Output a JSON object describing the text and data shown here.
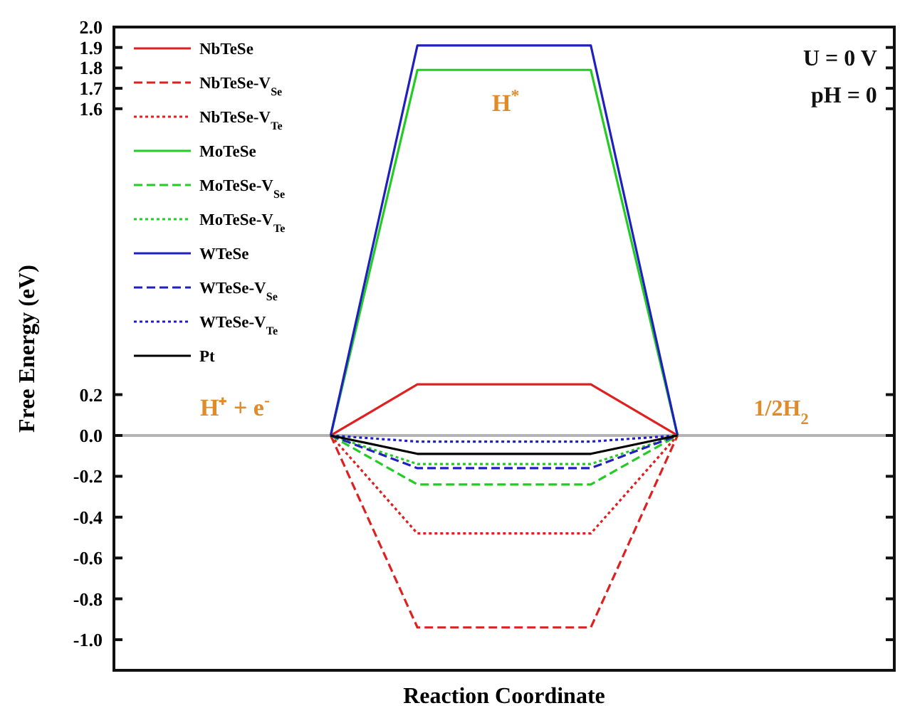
{
  "chart_data": {
    "type": "line",
    "xlabel": "Reaction Coordinate",
    "ylabel": "Free Energy (eV)",
    "categories": [
      null,
      null,
      null,
      null,
      null,
      null,
      null,
      null,
      null
    ],
    "series": [
      {
        "name": "NbTeSe",
        "color": "#e02020",
        "line_style": "solid",
        "values": [
          null,
          null,
          0,
          0.25,
          0.25,
          0.25,
          0,
          null,
          null
        ]
      },
      {
        "name": "NbTeSe-V$_{Se}$",
        "color": "#e02020",
        "line_style": "dashed",
        "values": [
          null,
          null,
          0,
          -0.94,
          -0.94,
          -0.94,
          0,
          null,
          null
        ]
      },
      {
        "name": "NbTeSe-V$_{Te}$",
        "color": "#e02020",
        "line_style": "dotted",
        "values": [
          null,
          null,
          0,
          -0.48,
          -0.48,
          -0.48,
          0,
          null,
          null
        ]
      },
      {
        "name": "MoTeSe",
        "color": "#22cc22",
        "line_style": "solid",
        "values": [
          null,
          null,
          0,
          1.79,
          1.79,
          1.79,
          0,
          null,
          null
        ]
      },
      {
        "name": "MoTeSe-V$_{Se}$",
        "color": "#22cc22",
        "line_style": "dashed",
        "values": [
          null,
          null,
          0,
          -0.24,
          -0.24,
          -0.24,
          0,
          null,
          null
        ]
      },
      {
        "name": "MoTeSe-V$_{Te}$",
        "color": "#22cc22",
        "line_style": "dotted",
        "values": [
          null,
          null,
          0,
          -0.14,
          -0.14,
          -0.14,
          0,
          null,
          null
        ]
      },
      {
        "name": "WTeSe",
        "color": "#2020c0",
        "line_style": "solid",
        "values": [
          null,
          null,
          0,
          1.91,
          1.91,
          1.91,
          0,
          null,
          null
        ]
      },
      {
        "name": "WTeSe-V$_{Se}$",
        "color": "#2020c0",
        "line_style": "dashed",
        "values": [
          null,
          null,
          0,
          -0.16,
          -0.16,
          -0.16,
          0,
          null,
          null
        ]
      },
      {
        "name": "WTeSe-V$_{Te}$",
        "color": "#2020c0",
        "line_style": "dotted",
        "values": [
          null,
          null,
          0,
          -0.03,
          -0.03,
          -0.03,
          0,
          null,
          null
        ]
      },
      {
        "name": "Pt",
        "color": "#000000",
        "line_style": "solid",
        "values": [
          null,
          null,
          0,
          -0.09,
          -0.09,
          -0.09,
          0,
          null,
          null
        ]
      }
    ],
    "ylim": [
      -1.15,
      2.0
    ],
    "yticks": [
      {
        "value": -1.0,
        "label": "-1.0"
      },
      -0.8,
      -0.6,
      -0.4,
      -0.2,
      {
        "value": 0.0,
        "label": "0.0"
      },
      0.2,
      1.6,
      1.7,
      1.8,
      1.9,
      {
        "value": 2.0,
        "label": "2.0"
      }
    ],
    "ref_lines": [
      {
        "axis": "y",
        "value": 0,
        "color": "#b4b4b4"
      }
    ],
    "annotations": [
      "H⁺ + e$^{-}$",
      "H$^{*}$",
      "1/2H$_{2}$",
      "U = 0 V",
      "pH = 0"
    ],
    "legend": "top left",
    "grid": false,
    "tick_labels": "y"
  }
}
